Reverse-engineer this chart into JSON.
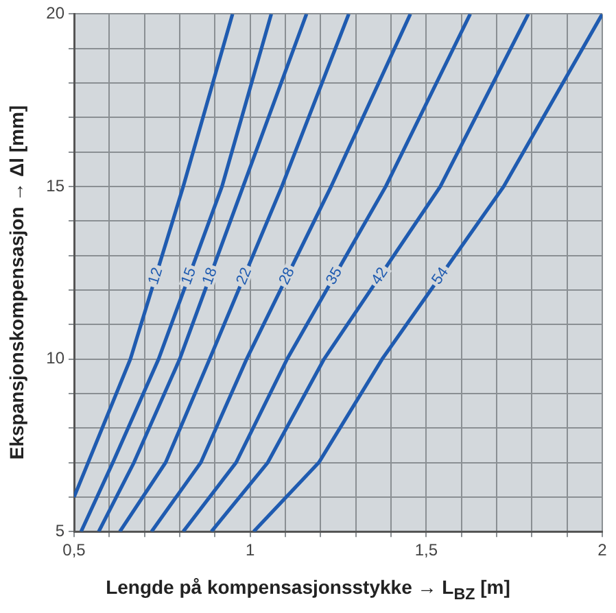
{
  "chart_data": {
    "type": "line",
    "xlabel": "Lengde på kompensasjonsstykke → L$_{BZ}$ [m]",
    "ylabel": "Ekspansjonskompensasjon → Δl [mm]",
    "xlim": [
      0.5,
      2
    ],
    "ylim": [
      5,
      20
    ],
    "xticks": [
      {
        "value": 0.5,
        "label": "0,5"
      },
      {
        "value": 0.6,
        "label": null
      },
      {
        "value": 0.7,
        "label": null
      },
      {
        "value": 0.8,
        "label": null
      },
      {
        "value": 0.9,
        "label": null
      },
      1,
      {
        "value": 1.1,
        "label": null
      },
      {
        "value": 1.2,
        "label": null
      },
      {
        "value": 1.3,
        "label": null
      },
      {
        "value": 1.4,
        "label": null
      },
      {
        "value": 1.5,
        "label": "1,5"
      },
      {
        "value": 1.6,
        "label": null
      },
      {
        "value": 1.7,
        "label": null
      },
      {
        "value": 1.8,
        "label": null
      },
      {
        "value": 1.9,
        "label": null
      },
      2
    ],
    "yticks": [
      5,
      {
        "value": 6,
        "label": null
      },
      {
        "value": 7,
        "label": null
      },
      {
        "value": 8,
        "label": null
      },
      {
        "value": 9,
        "label": null
      },
      10,
      {
        "value": 11,
        "label": null
      },
      {
        "value": 12,
        "label": null
      },
      {
        "value": 13,
        "label": null
      },
      {
        "value": 14,
        "label": null
      },
      15,
      {
        "value": 16,
        "label": null
      },
      {
        "value": 17,
        "label": null
      },
      {
        "value": 18,
        "label": null
      },
      {
        "value": 19,
        "label": null
      },
      20
    ],
    "grid": true,
    "legend": false,
    "marker": "none",
    "line_style": "solid",
    "series": [
      {
        "name": "12",
        "color": "#1f5bb0",
        "x": [
          0.5,
          0.54,
          0.66,
          0.81,
          0.95
        ],
        "values": [
          6,
          7,
          10,
          15,
          20
        ]
      },
      {
        "name": "15",
        "color": "#1f5bb0",
        "x": [
          0.52,
          0.61,
          0.74,
          0.92,
          1.06
        ],
        "values": [
          5,
          7,
          10,
          15,
          20
        ]
      },
      {
        "name": "18",
        "color": "#1f5bb0",
        "x": [
          0.57,
          0.67,
          0.8,
          0.98,
          1.16
        ],
        "values": [
          5,
          7,
          10,
          15,
          20
        ]
      },
      {
        "name": "22",
        "color": "#1f5bb0",
        "x": [
          0.63,
          0.76,
          0.885,
          1.09,
          1.28
        ],
        "values": [
          5,
          7,
          10,
          15,
          20
        ]
      },
      {
        "name": "28",
        "color": "#1f5bb0",
        "x": [
          0.72,
          0.86,
          0.99,
          1.23,
          1.455
        ],
        "values": [
          5,
          7,
          10,
          15,
          20
        ]
      },
      {
        "name": "35",
        "color": "#1f5bb0",
        "x": [
          0.81,
          0.96,
          1.105,
          1.385,
          1.625
        ],
        "values": [
          5,
          7,
          10,
          15,
          20
        ]
      },
      {
        "name": "42",
        "color": "#1f5bb0",
        "x": [
          0.89,
          1.05,
          1.21,
          1.54,
          1.79
        ],
        "values": [
          5,
          7,
          10,
          15,
          20
        ]
      },
      {
        "name": "54",
        "color": "#1f5bb0",
        "x": [
          1.01,
          1.195,
          1.375,
          1.72,
          2.0
        ],
        "values": [
          5,
          7,
          10,
          15,
          20
        ]
      }
    ]
  }
}
